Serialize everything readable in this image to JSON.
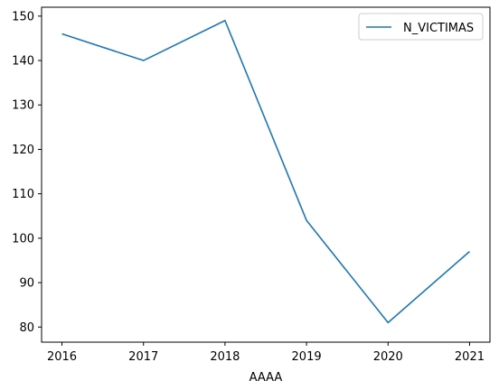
{
  "chart_data": {
    "type": "line",
    "title": "",
    "xlabel": "AAAA",
    "ylabel": "",
    "x": [
      2016,
      2017,
      2018,
      2019,
      2020,
      2021
    ],
    "series": [
      {
        "name": "N_VICTIMAS",
        "values": [
          146,
          140,
          149,
          104,
          81,
          97
        ],
        "color": "#1f77b4"
      }
    ],
    "xlim": [
      2015.75,
      2021.25
    ],
    "ylim": [
      76.6,
      152.0
    ],
    "xticks": [
      2016,
      2017,
      2018,
      2019,
      2020,
      2021
    ],
    "yticks": [
      80,
      90,
      100,
      110,
      120,
      130,
      140,
      150
    ],
    "grid": false,
    "legend_position": "top-right"
  }
}
